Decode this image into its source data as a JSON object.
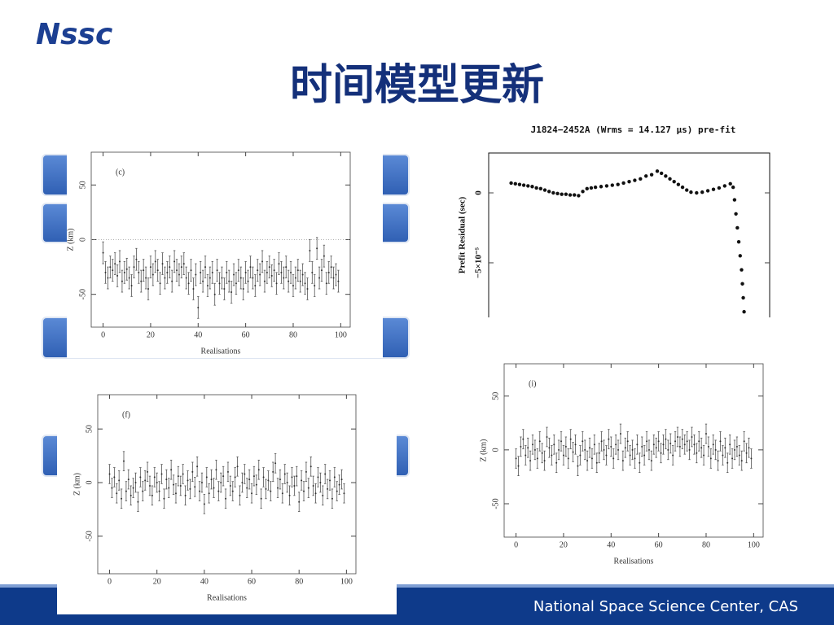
{
  "header": {
    "logo": "Nssc",
    "title": "时间模型更新"
  },
  "footer": {
    "text": "National Space Science Center, CAS"
  },
  "chart_data": [
    {
      "type": "scatter",
      "title": "J1824−2452A (Wrms = 14.127 μs) pre-fit",
      "ylabel": "Prefit Residual (sec)",
      "color": "#111",
      "xlim": [
        0,
        100
      ],
      "ylim": [
        -8.9e-05,
        2.85e-05
      ],
      "yticks": [
        0,
        {
          "value": -5e-05,
          "label": "−5×10⁻⁵"
        }
      ],
      "x": [
        8,
        9.5,
        11,
        12.5,
        14,
        15.5,
        17,
        18.5,
        20,
        21.5,
        23,
        24.5,
        26,
        27.5,
        29,
        30.5,
        32,
        33.5,
        35,
        36.5,
        38,
        40,
        42,
        44,
        46,
        48,
        50,
        52,
        54,
        56,
        58,
        60,
        61.5,
        63,
        64.5,
        66,
        67.5,
        69,
        70.5,
        72,
        74,
        76,
        78,
        80,
        82,
        84,
        86,
        87,
        87.5,
        88,
        88.5,
        89,
        89.5,
        90,
        90.3,
        90.6,
        90.9
      ],
      "values": [
        7e-06,
        6.5e-06,
        6e-06,
        5.5e-06,
        5e-06,
        4.5e-06,
        3.5e-06,
        3e-06,
        2e-06,
        1e-06,
        0,
        -5e-07,
        -1e-06,
        -1e-06,
        -1.5e-06,
        -1.5e-06,
        -2e-06,
        1e-06,
        3e-06,
        3.5e-06,
        4e-06,
        4.5e-06,
        5e-06,
        5.5e-06,
        6e-06,
        7e-06,
        8e-06,
        9e-06,
        1e-05,
        1.2e-05,
        1.3e-05,
        1.55e-05,
        1.4e-05,
        1.2e-05,
        1e-05,
        8e-06,
        6e-06,
        4e-06,
        2e-06,
        5e-07,
        0,
        5e-07,
        1.5e-06,
        2.5e-06,
        3.5e-06,
        5e-06,
        6.5e-06,
        4e-06,
        -5e-06,
        -1.5e-05,
        -2.5e-05,
        -3.5e-05,
        -4.5e-05,
        -5.5e-05,
        -6.5e-05,
        -7.5e-05,
        -8.5e-05
      ]
    },
    {
      "type": "errorbar",
      "annotation": "(c)",
      "xlabel": "Realisations",
      "ylabel": "Z (km)",
      "color": "#555",
      "xlim": [
        -5,
        104
      ],
      "ylim": [
        -80,
        80
      ],
      "xticks": [
        0,
        20,
        40,
        60,
        80,
        100
      ],
      "yticks": [
        -50,
        0,
        50
      ],
      "zero_line": true,
      "error": 10,
      "x": [
        0,
        1,
        2,
        3,
        4,
        5,
        6,
        7,
        8,
        9,
        10,
        11,
        12,
        13,
        14,
        15,
        16,
        17,
        18,
        19,
        20,
        21,
        22,
        23,
        24,
        25,
        26,
        27,
        28,
        29,
        30,
        31,
        32,
        33,
        34,
        35,
        36,
        37,
        38,
        39,
        40,
        41,
        42,
        43,
        44,
        45,
        46,
        47,
        48,
        49,
        50,
        51,
        52,
        53,
        54,
        55,
        56,
        57,
        58,
        59,
        60,
        61,
        62,
        63,
        64,
        65,
        66,
        67,
        68,
        69,
        70,
        71,
        72,
        73,
        74,
        75,
        76,
        77,
        78,
        79,
        80,
        81,
        82,
        83,
        84,
        85,
        86,
        87,
        88,
        89,
        90,
        91,
        92,
        93,
        94,
        95,
        96,
        97,
        98,
        99
      ],
      "values": [
        -12,
        -30,
        -35,
        -25,
        -28,
        -22,
        -33,
        -20,
        -38,
        -30,
        -27,
        -35,
        -42,
        -25,
        -18,
        -30,
        -38,
        -28,
        -35,
        -45,
        -25,
        -32,
        -20,
        -28,
        -40,
        -22,
        -35,
        -30,
        -25,
        -38,
        -20,
        -28,
        -32,
        -25,
        -22,
        -35,
        -40,
        -28,
        -45,
        -32,
        -62,
        -30,
        -38,
        -25,
        -42,
        -35,
        -30,
        -50,
        -28,
        -40,
        -35,
        -45,
        -30,
        -38,
        -48,
        -32,
        -40,
        -28,
        -35,
        -45,
        -30,
        -38,
        -25,
        -35,
        -42,
        -28,
        -32,
        -20,
        -38,
        -30,
        -25,
        -33,
        -28,
        -40,
        -22,
        -30,
        -35,
        -25,
        -38,
        -30,
        -42,
        -35,
        -28,
        -38,
        -32,
        -40,
        -45,
        -10,
        -30,
        -42,
        -8,
        -35,
        -28,
        -15,
        -40,
        -30,
        -25,
        -35,
        -32,
        -38
      ]
    },
    {
      "type": "errorbar",
      "annotation": "(f)",
      "xlabel": "Realisations",
      "ylabel": "Z (km)",
      "color": "#555",
      "xlim": [
        -5,
        104
      ],
      "ylim": [
        -85,
        82
      ],
      "xticks": [
        0,
        20,
        40,
        60,
        80,
        100
      ],
      "yticks": [
        -50,
        0,
        50
      ],
      "zero_line": false,
      "error": 9,
      "x": [
        0,
        1,
        2,
        3,
        4,
        5,
        6,
        7,
        8,
        9,
        10,
        11,
        12,
        13,
        14,
        15,
        16,
        17,
        18,
        19,
        20,
        21,
        22,
        23,
        24,
        25,
        26,
        27,
        28,
        29,
        30,
        31,
        32,
        33,
        34,
        35,
        36,
        37,
        38,
        39,
        40,
        41,
        42,
        43,
        44,
        45,
        46,
        47,
        48,
        49,
        50,
        51,
        52,
        53,
        54,
        55,
        56,
        57,
        58,
        59,
        60,
        61,
        62,
        63,
        64,
        65,
        66,
        67,
        68,
        69,
        70,
        71,
        72,
        73,
        74,
        75,
        76,
        77,
        78,
        79,
        80,
        81,
        82,
        83,
        84,
        85,
        86,
        87,
        88,
        89,
        90,
        91,
        92,
        93,
        94,
        95,
        96,
        97,
        98,
        99
      ],
      "values": [
        8,
        -5,
        5,
        -10,
        2,
        -15,
        20,
        -8,
        3,
        -12,
        -5,
        0,
        -18,
        5,
        -8,
        2,
        10,
        -3,
        -12,
        5,
        0,
        -8,
        8,
        -15,
        3,
        -5,
        12,
        -2,
        -10,
        6,
        -3,
        8,
        -12,
        2,
        -6,
        10,
        -4,
        15,
        -8,
        0,
        -20,
        5,
        -10,
        3,
        -5,
        12,
        -8,
        0,
        6,
        -15,
        10,
        -3,
        -8,
        5,
        15,
        -12,
        0,
        8,
        -5,
        3,
        -10,
        6,
        -2,
        12,
        -15,
        5,
        -6,
        2,
        -8,
        10,
        18,
        -5,
        3,
        -10,
        8,
        0,
        -12,
        5,
        -3,
        6,
        -18,
        2,
        -8,
        10,
        -5,
        15,
        -3,
        -10,
        5,
        0,
        -12,
        8,
        -6,
        2,
        -15,
        5,
        -8,
        -2,
        3,
        -10
      ]
    },
    {
      "type": "errorbar",
      "annotation": "(i)",
      "xlabel": "Realisations",
      "ylabel": "Z (km)",
      "color": "#555",
      "xlim": [
        -5,
        104
      ],
      "ylim": [
        -81,
        80
      ],
      "xticks": [
        0,
        20,
        40,
        60,
        80,
        100
      ],
      "yticks": [
        -50,
        0,
        50
      ],
      "zero_line": false,
      "error": 9,
      "x": [
        0,
        1,
        2,
        3,
        4,
        5,
        6,
        7,
        8,
        9,
        10,
        11,
        12,
        13,
        14,
        15,
        16,
        17,
        18,
        19,
        20,
        21,
        22,
        23,
        24,
        25,
        26,
        27,
        28,
        29,
        30,
        31,
        32,
        33,
        34,
        35,
        36,
        37,
        38,
        39,
        40,
        41,
        42,
        43,
        44,
        45,
        46,
        47,
        48,
        49,
        50,
        51,
        52,
        53,
        54,
        55,
        56,
        57,
        58,
        59,
        60,
        61,
        62,
        63,
        64,
        65,
        66,
        67,
        68,
        69,
        70,
        71,
        72,
        73,
        74,
        75,
        76,
        77,
        78,
        79,
        80,
        81,
        82,
        83,
        84,
        85,
        86,
        87,
        88,
        89,
        90,
        91,
        92,
        93,
        94,
        95,
        96,
        97,
        98,
        99
      ],
      "values": [
        -8,
        -15,
        3,
        10,
        -5,
        2,
        -10,
        5,
        0,
        -8,
        8,
        -3,
        -10,
        12,
        2,
        -5,
        5,
        -12,
        0,
        8,
        -5,
        3,
        -8,
        10,
        -2,
        5,
        -15,
        -5,
        8,
        0,
        -10,
        2,
        -8,
        5,
        -12,
        -3,
        8,
        0,
        -5,
        10,
        3,
        -8,
        5,
        0,
        15,
        -10,
        2,
        8,
        -5,
        0,
        -8,
        5,
        -12,
        3,
        -5,
        8,
        0,
        -10,
        5,
        2,
        8,
        -3,
        5,
        10,
        0,
        6,
        -5,
        8,
        12,
        3,
        10,
        5,
        8,
        0,
        12,
        5,
        -3,
        8,
        2,
        -5,
        15,
        3,
        -8,
        5,
        0,
        -10,
        8,
        -5,
        2,
        -12,
        5,
        -8,
        0,
        3,
        -5,
        -10,
        8,
        -3,
        2,
        -8
      ]
    }
  ]
}
